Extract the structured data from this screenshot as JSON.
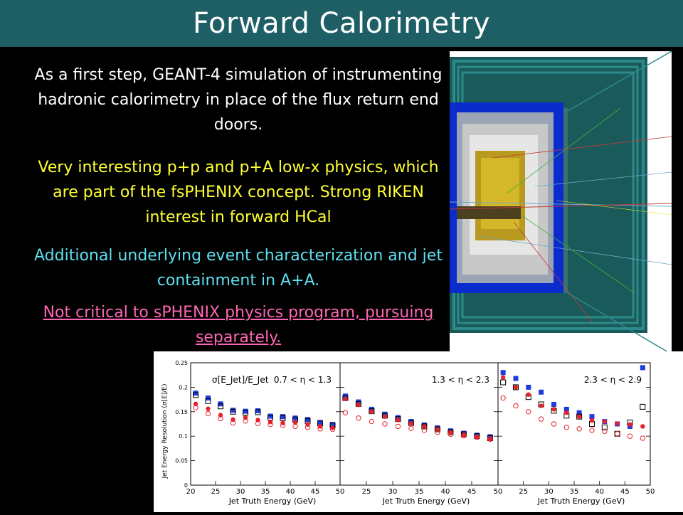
{
  "slide": {
    "title": "Forward Calorimetry",
    "colors": {
      "title_bar": "#1e5f66",
      "background": "#000000",
      "text_white": "#ffffff",
      "text_yellow": "#ffff33",
      "text_cyan": "#5ce0f0",
      "text_pink": "#ff66b3"
    },
    "paragraphs": {
      "p1": "As a first step, GEANT-4 simulation of instrumenting hadronic calorimetry in place of the flux return end doors.",
      "p2": "Very interesting p+p and p+A low-x physics, which are part of the fsPHENIX concept. Strong RIKEN interest in forward HCal",
      "p3": "Additional underlying event characterization and jet containment in A+A.",
      "p4": "Not critical to sPHENIX physics program, pursuing separately."
    }
  },
  "chart_data": {
    "type": "scatter",
    "ylabel": "Jet Energy Resolution (σ[E]/E)",
    "xlabel": "Jet Truth Energy (GeV)",
    "ylim": [
      0,
      0.25
    ],
    "yticks": [
      "0",
      "0.05",
      "0.1",
      "0.15",
      "0.2",
      "0.25"
    ],
    "panels": [
      {
        "label": "0.7 < η < 1.3",
        "formula": "σ[E_Jet]/E_Jet",
        "xlim": [
          20,
          50
        ],
        "xticks": [
          "20",
          "25",
          "30",
          "35",
          "40",
          "45",
          "50"
        ],
        "series": [
          {
            "marker": "filled-square",
            "color": "#1f3bdc",
            "x": [
              21,
              23.5,
              26,
              28.5,
              31,
              33.5,
              36,
              38.5,
              41,
              43.5,
              46,
              48.5
            ],
            "y": [
              0.188,
              0.178,
              0.166,
              0.153,
              0.151,
              0.152,
              0.141,
              0.14,
              0.137,
              0.134,
              0.128,
              0.124
            ]
          },
          {
            "marker": "open-square",
            "color": "#000000",
            "x": [
              21,
              23.5,
              26,
              28.5,
              31,
              33.5,
              36,
              38.5,
              41,
              43.5,
              46,
              48.5
            ],
            "y": [
              0.184,
              0.172,
              0.161,
              0.15,
              0.148,
              0.149,
              0.138,
              0.137,
              0.134,
              0.131,
              0.126,
              0.122
            ]
          },
          {
            "marker": "filled-circle",
            "color": "#e8202a",
            "x": [
              21,
              23.5,
              26,
              28.5,
              31,
              33.5,
              36,
              38.5,
              41,
              43.5,
              46,
              48.5
            ],
            "y": [
              0.166,
              0.156,
              0.143,
              0.134,
              0.138,
              0.133,
              0.129,
              0.127,
              0.128,
              0.124,
              0.12,
              0.117
            ]
          },
          {
            "marker": "open-circle",
            "color": "#e8202a",
            "x": [
              21,
              23.5,
              26,
              28.5,
              31,
              33.5,
              36,
              38.5,
              41,
              43.5,
              46,
              48.5
            ],
            "y": [
              0.158,
              0.146,
              0.136,
              0.127,
              0.131,
              0.126,
              0.124,
              0.122,
              0.12,
              0.118,
              0.115,
              0.114
            ]
          }
        ]
      },
      {
        "label": "1.3 < η < 2.3",
        "xlim": [
          20,
          50
        ],
        "xticks": [
          "20",
          "25",
          "30",
          "35",
          "40",
          "45",
          "50"
        ],
        "series": [
          {
            "marker": "filled-square",
            "color": "#1f3bdc",
            "x": [
              21,
              23.5,
              26,
              28.5,
              31,
              33.5,
              36,
              38.5,
              41,
              43.5,
              46,
              48.5
            ],
            "y": [
              0.182,
              0.17,
              0.155,
              0.145,
              0.138,
              0.13,
              0.123,
              0.117,
              0.111,
              0.106,
              0.102,
              0.099
            ]
          },
          {
            "marker": "open-square",
            "color": "#000000",
            "x": [
              21,
              23.5,
              26,
              28.5,
              31,
              33.5,
              36,
              38.5,
              41,
              43.5,
              46,
              48.5
            ],
            "y": [
              0.178,
              0.166,
              0.151,
              0.142,
              0.135,
              0.127,
              0.12,
              0.114,
              0.108,
              0.104,
              0.1,
              0.096
            ]
          },
          {
            "marker": "filled-circle",
            "color": "#e8202a",
            "x": [
              21,
              23.5,
              26,
              28.5,
              31,
              33.5,
              36,
              38.5,
              41,
              43.5,
              46,
              48.5
            ],
            "y": [
              0.176,
              0.164,
              0.15,
              0.14,
              0.133,
              0.126,
              0.12,
              0.114,
              0.108,
              0.103,
              0.098,
              0.093
            ]
          },
          {
            "marker": "open-circle",
            "color": "#e8202a",
            "x": [
              21,
              23.5,
              26,
              28.5,
              31,
              33.5,
              36,
              38.5,
              41,
              43.5,
              46,
              48.5
            ],
            "y": [
              0.148,
              0.137,
              0.13,
              0.125,
              0.12,
              0.116,
              0.112,
              0.108,
              0.104,
              0.101,
              0.098,
              0.095
            ]
          }
        ]
      },
      {
        "label": "2.3 < η < 2.9",
        "xlim": [
          20,
          50
        ],
        "xticks": [
          "20",
          "25",
          "30",
          "35",
          "40",
          "45",
          "50"
        ],
        "series": [
          {
            "marker": "filled-square",
            "color": "#1f3bdc",
            "x": [
              21,
              23.5,
              26,
              28.5,
              31,
              33.5,
              36,
              38.5,
              41,
              43.5,
              46,
              48.5
            ],
            "y": [
              0.23,
              0.218,
              0.2,
              0.19,
              0.165,
              0.155,
              0.148,
              0.14,
              0.13,
              0.125,
              0.12,
              0.24
            ]
          },
          {
            "marker": "open-square",
            "color": "#000000",
            "x": [
              21,
              23.5,
              26,
              28.5,
              31,
              33.5,
              36,
              38.5,
              41,
              43.5,
              46,
              48.5
            ],
            "y": [
              0.21,
              0.2,
              0.18,
              0.165,
              0.152,
              0.142,
              0.14,
              0.125,
              0.118,
              0.105,
              0.128,
              0.16
            ]
          },
          {
            "marker": "filled-circle",
            "color": "#e8202a",
            "x": [
              21,
              23.5,
              26,
              28.5,
              31,
              33.5,
              36,
              38.5,
              41,
              43.5,
              46,
              48.5
            ],
            "y": [
              0.22,
              0.2,
              0.185,
              0.162,
              0.155,
              0.148,
              0.14,
              0.132,
              0.13,
              0.126,
              0.124,
              0.12
            ]
          },
          {
            "marker": "open-circle",
            "color": "#e8202a",
            "x": [
              21,
              23.5,
              26,
              28.5,
              31,
              33.5,
              36,
              38.5,
              41,
              43.5,
              46,
              48.5
            ],
            "y": [
              0.178,
              0.162,
              0.15,
              0.135,
              0.125,
              0.118,
              0.115,
              0.112,
              0.11,
              0.105,
              0.1,
              0.096
            ]
          }
        ]
      }
    ]
  }
}
